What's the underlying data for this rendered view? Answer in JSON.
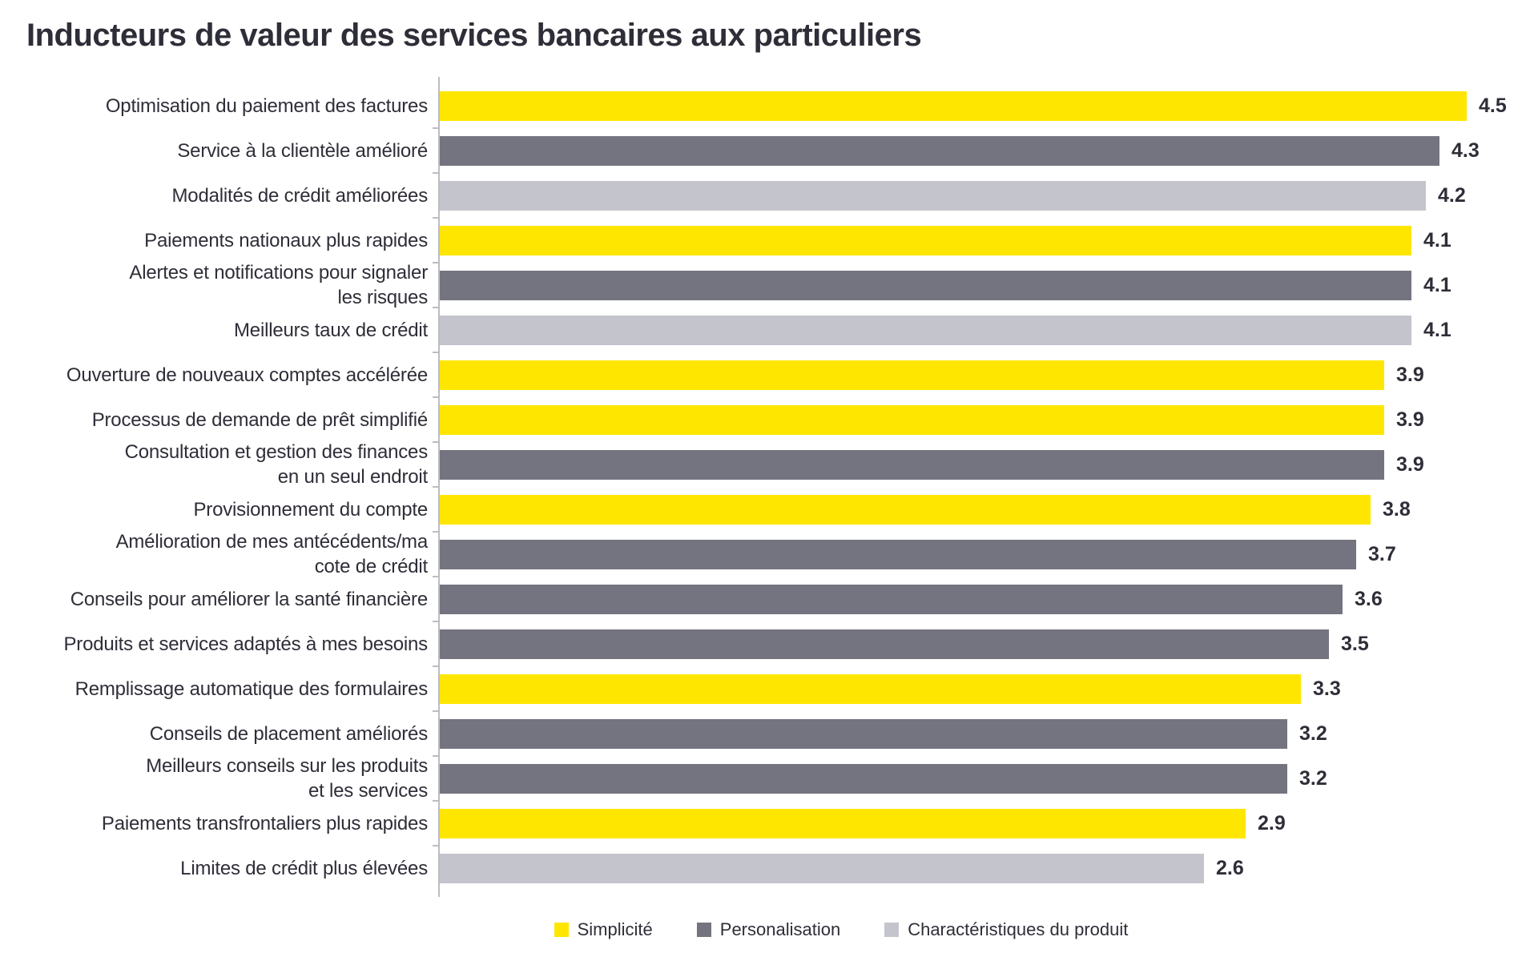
{
  "chart_data": {
    "type": "bar",
    "orientation": "horizontal",
    "title": "Inducteurs de valeur des services bancaires aux particuliers",
    "categories": [
      "Optimisation du paiement des factures",
      "Service à la clientèle amélioré",
      "Modalités de crédit améliorées",
      "Paiements nationaux plus rapides",
      "Alertes et notifications pour signaler\nles risques",
      "Meilleurs taux de crédit",
      "Ouverture de nouveaux comptes accélérée",
      "Processus de demande de prêt simplifié",
      "Consultation et gestion des finances\nen un seul endroit",
      "Provisionnement du compte",
      "Amélioration de mes antécédents/ma\ncote de crédit",
      "Conseils pour améliorer la santé financière",
      "Produits et services adaptés à mes besoins",
      "Remplissage automatique des formulaires",
      "Conseils de placement améliorés",
      "Meilleurs conseils sur les produits\net les services",
      "Paiements transfrontaliers plus rapides",
      "Limites de crédit plus élevées"
    ],
    "values": [
      4.5,
      4.3,
      4.2,
      4.1,
      4.1,
      4.1,
      3.9,
      3.9,
      3.9,
      3.8,
      3.7,
      3.6,
      3.5,
      3.3,
      3.2,
      3.2,
      2.9,
      2.6
    ],
    "bar_series": [
      "simplicite",
      "personalisation",
      "produit",
      "simplicite",
      "personalisation",
      "produit",
      "simplicite",
      "simplicite",
      "personalisation",
      "simplicite",
      "personalisation",
      "personalisation",
      "personalisation",
      "simplicite",
      "personalisation",
      "personalisation",
      "simplicite",
      "produit"
    ],
    "legend": [
      {
        "key": "simplicite",
        "label": "Simplicité",
        "color": "#FFE600"
      },
      {
        "key": "personalisation",
        "label": "Personalisation",
        "color": "#747480"
      },
      {
        "key": "produit",
        "label": "Charactéristiques du produit",
        "color": "#C4C4CD"
      }
    ],
    "legend_position": "bottom",
    "grid": false,
    "value_labels_shown": true,
    "xlim_implied": [
      -2.9,
      5.0
    ],
    "axis_color": "#bcbcc4"
  }
}
